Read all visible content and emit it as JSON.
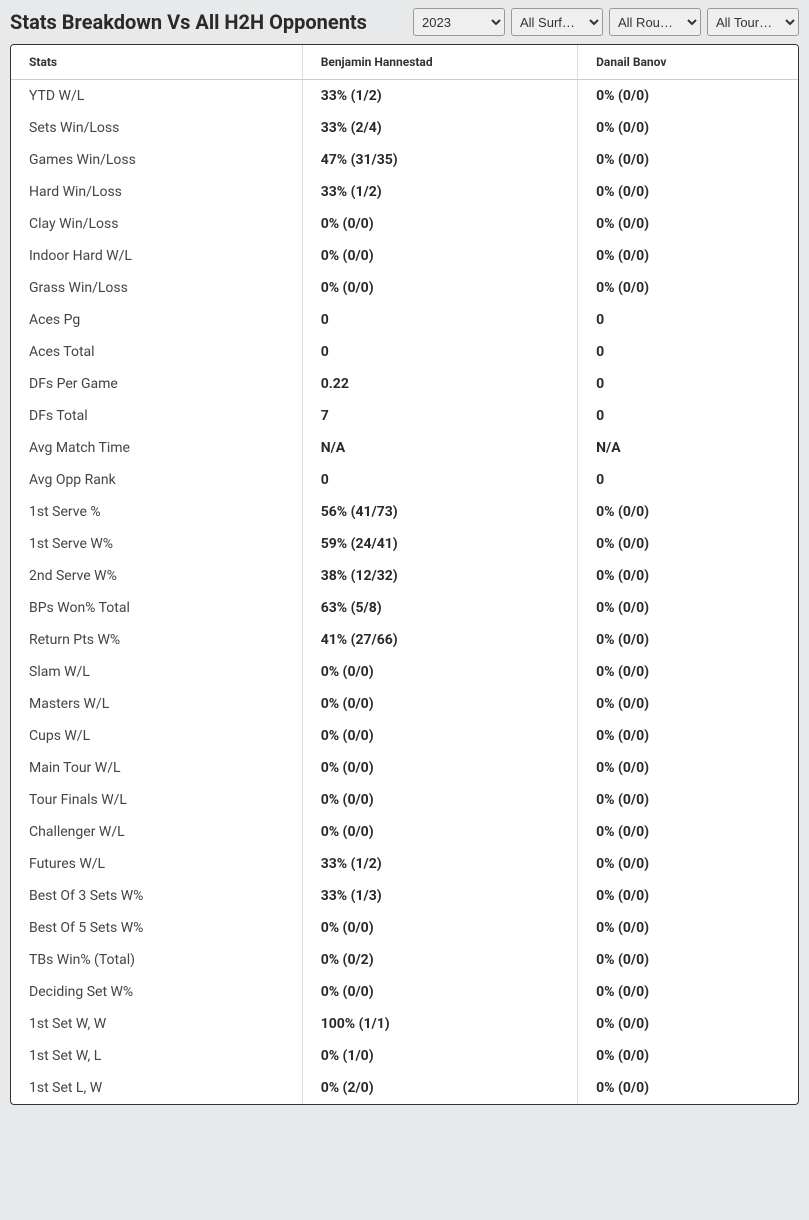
{
  "header": {
    "title": "Stats Breakdown Vs All H2H Opponents"
  },
  "filters": {
    "year": {
      "selected": "2023",
      "options": [
        "2023"
      ]
    },
    "surface": {
      "selected": "All Surf…",
      "options": [
        "All Surf…"
      ]
    },
    "round": {
      "selected": "All Rou…",
      "options": [
        "All Rou…"
      ]
    },
    "tour": {
      "selected": "All Tour…",
      "options": [
        "All Tour…"
      ]
    }
  },
  "table": {
    "columns": {
      "stats": "Stats",
      "player1": "Benjamin Hannestad",
      "player2": "Danail Banov"
    },
    "rows": [
      {
        "stat": "YTD W/L",
        "p1": "33% (1/2)",
        "p2": "0% (0/0)"
      },
      {
        "stat": "Sets Win/Loss",
        "p1": "33% (2/4)",
        "p2": "0% (0/0)"
      },
      {
        "stat": "Games Win/Loss",
        "p1": "47% (31/35)",
        "p2": "0% (0/0)"
      },
      {
        "stat": "Hard Win/Loss",
        "p1": "33% (1/2)",
        "p2": "0% (0/0)"
      },
      {
        "stat": "Clay Win/Loss",
        "p1": "0% (0/0)",
        "p2": "0% (0/0)"
      },
      {
        "stat": "Indoor Hard W/L",
        "p1": "0% (0/0)",
        "p2": "0% (0/0)"
      },
      {
        "stat": "Grass Win/Loss",
        "p1": "0% (0/0)",
        "p2": "0% (0/0)"
      },
      {
        "stat": "Aces Pg",
        "p1": "0",
        "p2": "0"
      },
      {
        "stat": "Aces Total",
        "p1": "0",
        "p2": "0"
      },
      {
        "stat": "DFs Per Game",
        "p1": "0.22",
        "p2": "0"
      },
      {
        "stat": "DFs Total",
        "p1": "7",
        "p2": "0"
      },
      {
        "stat": "Avg Match Time",
        "p1": "N/A",
        "p2": "N/A"
      },
      {
        "stat": "Avg Opp Rank",
        "p1": "0",
        "p2": "0"
      },
      {
        "stat": "1st Serve %",
        "p1": "56% (41/73)",
        "p2": "0% (0/0)"
      },
      {
        "stat": "1st Serve W%",
        "p1": "59% (24/41)",
        "p2": "0% (0/0)"
      },
      {
        "stat": "2nd Serve W%",
        "p1": "38% (12/32)",
        "p2": "0% (0/0)"
      },
      {
        "stat": "BPs Won% Total",
        "p1": "63% (5/8)",
        "p2": "0% (0/0)"
      },
      {
        "stat": "Return Pts W%",
        "p1": "41% (27/66)",
        "p2": "0% (0/0)"
      },
      {
        "stat": "Slam W/L",
        "p1": "0% (0/0)",
        "p2": "0% (0/0)"
      },
      {
        "stat": "Masters W/L",
        "p1": "0% (0/0)",
        "p2": "0% (0/0)"
      },
      {
        "stat": "Cups W/L",
        "p1": "0% (0/0)",
        "p2": "0% (0/0)"
      },
      {
        "stat": "Main Tour W/L",
        "p1": "0% (0/0)",
        "p2": "0% (0/0)"
      },
      {
        "stat": "Tour Finals W/L",
        "p1": "0% (0/0)",
        "p2": "0% (0/0)"
      },
      {
        "stat": "Challenger W/L",
        "p1": "0% (0/0)",
        "p2": "0% (0/0)"
      },
      {
        "stat": "Futures W/L",
        "p1": "33% (1/2)",
        "p2": "0% (0/0)"
      },
      {
        "stat": "Best Of 3 Sets W%",
        "p1": "33% (1/3)",
        "p2": "0% (0/0)"
      },
      {
        "stat": "Best Of 5 Sets W%",
        "p1": "0% (0/0)",
        "p2": "0% (0/0)"
      },
      {
        "stat": "TBs Win% (Total)",
        "p1": "0% (0/2)",
        "p2": "0% (0/0)"
      },
      {
        "stat": "Deciding Set W%",
        "p1": "0% (0/0)",
        "p2": "0% (0/0)"
      },
      {
        "stat": "1st Set W, W",
        "p1": "100% (1/1)",
        "p2": "0% (0/0)"
      },
      {
        "stat": "1st Set W, L",
        "p1": "0% (1/0)",
        "p2": "0% (0/0)"
      },
      {
        "stat": "1st Set L, W",
        "p1": "0% (2/0)",
        "p2": "0% (0/0)"
      }
    ]
  }
}
